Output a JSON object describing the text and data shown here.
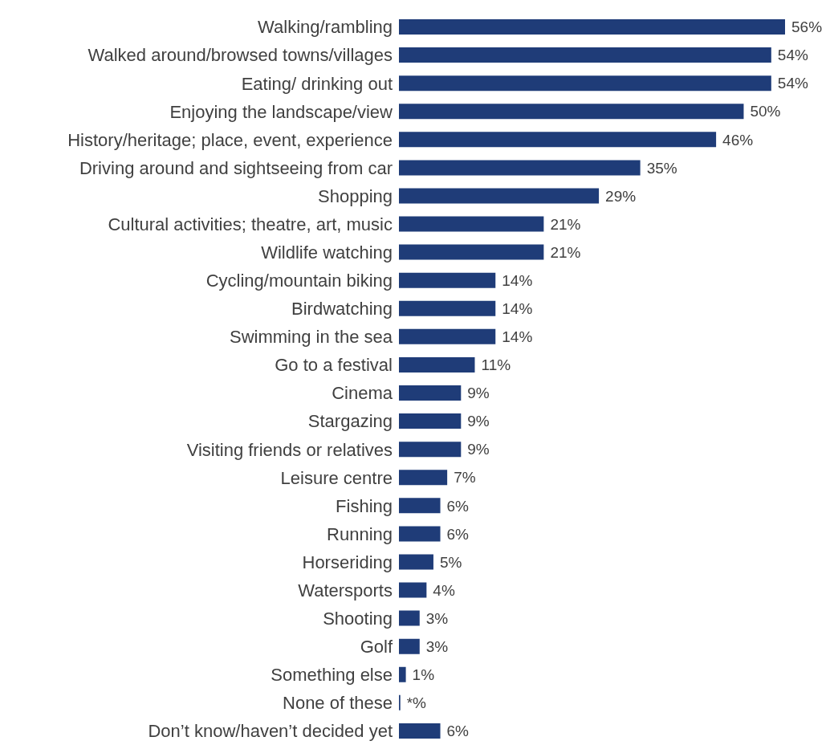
{
  "chart_data": {
    "type": "bar",
    "orientation": "horizontal",
    "categories": [
      "Walking/rambling",
      "Walked around/browsed towns/villages",
      "Eating/ drinking out",
      "Enjoying the landscape/view",
      "History/heritage; place, event, experience",
      "Driving around and sightseeing from car",
      "Shopping",
      "Cultural activities; theatre, art, music",
      "Wildlife watching",
      "Cycling/mountain biking",
      "Birdwatching",
      "Swimming in the sea",
      "Go to a festival",
      "Cinema",
      "Stargazing",
      "Visiting friends or relatives",
      "Leisure centre",
      "Fishing",
      "Running",
      "Horseriding",
      "Watersports",
      "Shooting",
      "Golf",
      "Something else",
      "None of these",
      "Don’t know/haven’t decided yet"
    ],
    "values": [
      56,
      54,
      54,
      50,
      46,
      35,
      29,
      21,
      21,
      14,
      14,
      14,
      11,
      9,
      9,
      9,
      7,
      6,
      6,
      5,
      4,
      3,
      3,
      1,
      0.2,
      6
    ],
    "value_labels": [
      "56%",
      "54%",
      "54%",
      "50%",
      "46%",
      "35%",
      "29%",
      "21%",
      "21%",
      "14%",
      "14%",
      "14%",
      "11%",
      "9%",
      "9%",
      "9%",
      "7%",
      "6%",
      "6%",
      "5%",
      "4%",
      "3%",
      "3%",
      "1%",
      "*%",
      "6%"
    ],
    "color": "#1f3c78",
    "tick_labels": "y",
    "grid": false,
    "legend": false
  }
}
